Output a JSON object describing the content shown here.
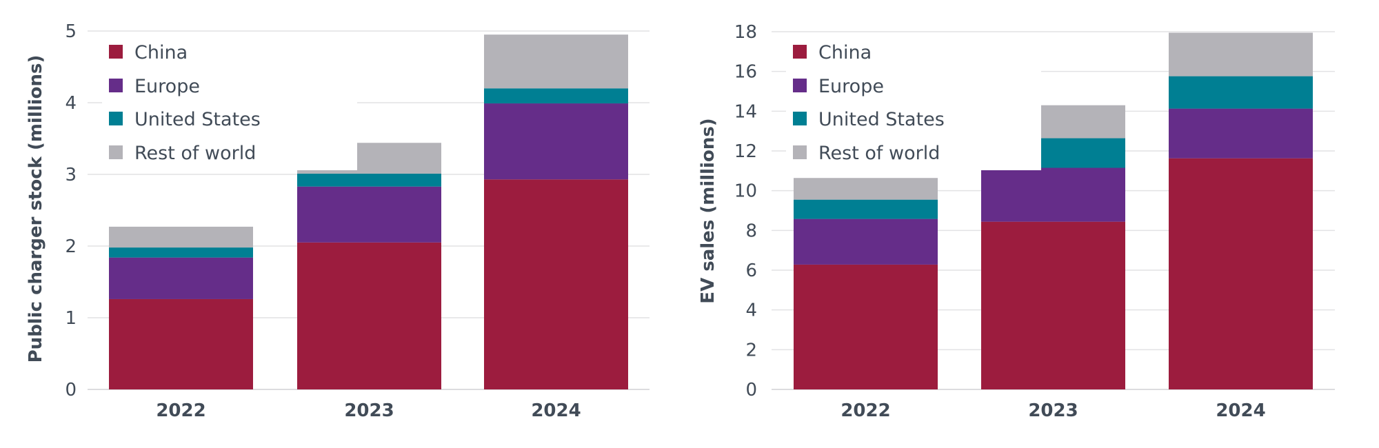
{
  "colors": {
    "China": "#9c1c3e",
    "Europe": "#652d89",
    "United States": "#007f93",
    "Rest of world": "#b4b3b8",
    "text": "#414b57",
    "grid": "#e2e2e4"
  },
  "chart_data": [
    {
      "type": "bar",
      "stacked": true,
      "title": "",
      "xlabel": "",
      "ylabel": "Public charger stock (millions)",
      "ylim": [
        0,
        5
      ],
      "yticks": [
        0,
        1,
        2,
        3,
        4,
        5
      ],
      "grid": true,
      "legend_position": "top-left",
      "categories": [
        "2022",
        "2023",
        "2024"
      ],
      "series": [
        {
          "name": "China",
          "values": [
            1.26,
            2.05,
            2.93
          ]
        },
        {
          "name": "Europe",
          "values": [
            0.58,
            0.78,
            1.06
          ]
        },
        {
          "name": "United States",
          "values": [
            0.14,
            0.18,
            0.21
          ]
        },
        {
          "name": "Rest of world",
          "values": [
            0.29,
            0.43,
            0.75
          ]
        }
      ]
    },
    {
      "type": "bar",
      "stacked": true,
      "title": "",
      "xlabel": "",
      "ylabel": "EV sales (millions)",
      "ylim": [
        0,
        18
      ],
      "yticks": [
        0,
        2,
        4,
        6,
        8,
        10,
        12,
        14,
        16,
        18
      ],
      "grid": true,
      "legend_position": "top-left",
      "categories": [
        "2022",
        "2023",
        "2024"
      ],
      "series": [
        {
          "name": "China",
          "values": [
            6.28,
            8.44,
            11.63
          ]
        },
        {
          "name": "Europe",
          "values": [
            2.3,
            2.71,
            2.5
          ]
        },
        {
          "name": "United States",
          "values": [
            0.97,
            1.49,
            1.63
          ]
        },
        {
          "name": "Rest of world",
          "values": [
            1.09,
            1.66,
            2.19
          ]
        }
      ]
    }
  ]
}
